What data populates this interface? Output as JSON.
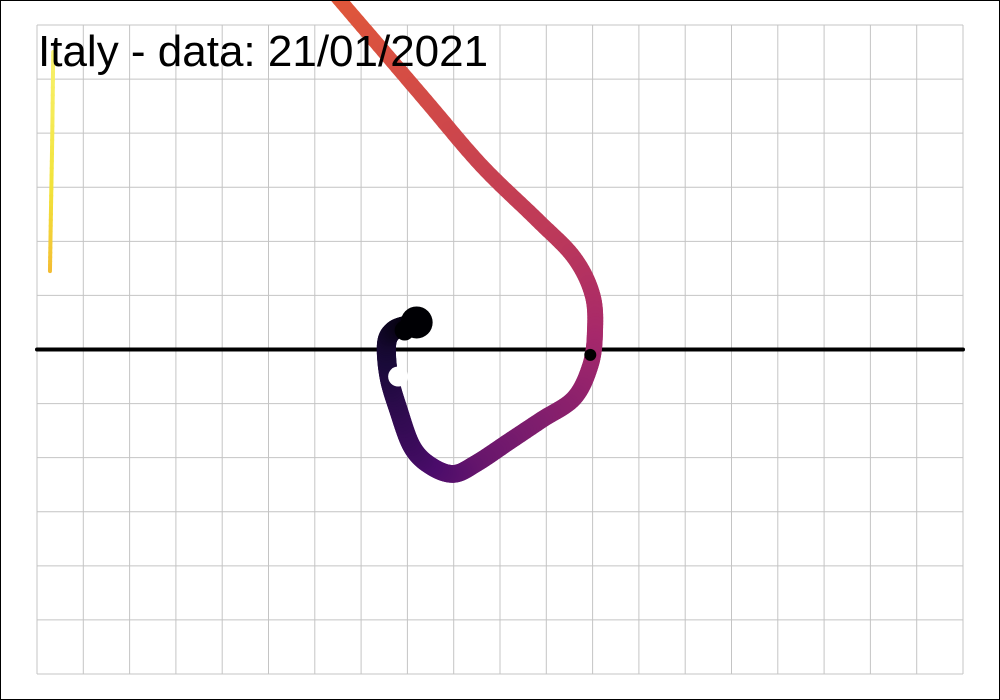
{
  "chart_data": {
    "type": "line",
    "title": "Italy  - data: 21/01/2021",
    "xlabel": "",
    "ylabel": "",
    "grid": true,
    "xlim": [
      0,
      20
    ],
    "ylim": [
      -6,
      6
    ],
    "zero_line": 0,
    "colormap": [
      "#fcfd9b",
      "#f2e33a",
      "#f58c2a",
      "#e0573a",
      "#c13c56",
      "#a6286b",
      "#7a1c6d",
      "#4b0c6b",
      "#1a0a3a",
      "#000004"
    ],
    "series": [
      {
        "points": [
          {
            "x": 0.35,
            "y": 5.5
          },
          {
            "x": 0.33,
            "y": 4.0
          },
          {
            "x": 0.3,
            "y": 2.5
          },
          {
            "x": 0.28,
            "y": 1.45
          }
        ]
      },
      {
        "points": [
          {
            "x": 6.3,
            "y": 6.7
          },
          {
            "x": 7.2,
            "y": 5.8
          },
          {
            "x": 8.4,
            "y": 4.6
          },
          {
            "x": 9.6,
            "y": 3.4
          },
          {
            "x": 10.8,
            "y": 2.4
          },
          {
            "x": 11.6,
            "y": 1.7
          },
          {
            "x": 12.0,
            "y": 1.0
          },
          {
            "x": 12.05,
            "y": 0.3
          },
          {
            "x": 11.95,
            "y": -0.3
          },
          {
            "x": 11.6,
            "y": -0.9
          },
          {
            "x": 10.9,
            "y": -1.3
          },
          {
            "x": 10.2,
            "y": -1.7
          },
          {
            "x": 9.5,
            "y": -2.1
          },
          {
            "x": 9.0,
            "y": -2.3
          },
          {
            "x": 8.5,
            "y": -2.15
          },
          {
            "x": 8.1,
            "y": -1.8
          },
          {
            "x": 7.8,
            "y": -1.1
          },
          {
            "x": 7.6,
            "y": -0.5
          },
          {
            "x": 7.55,
            "y": 0.1
          },
          {
            "x": 7.7,
            "y": 0.35
          },
          {
            "x": 8.0,
            "y": 0.45
          },
          {
            "x": 8.2,
            "y": 0.5
          }
        ]
      }
    ],
    "markers": [
      {
        "x": 11.95,
        "y": -0.1,
        "color": "#000000"
      },
      {
        "x": 7.8,
        "y": -0.5,
        "color": "#ffffff"
      }
    ],
    "end_point": {
      "x": 8.2,
      "y": 0.5,
      "color": "#000004"
    }
  }
}
